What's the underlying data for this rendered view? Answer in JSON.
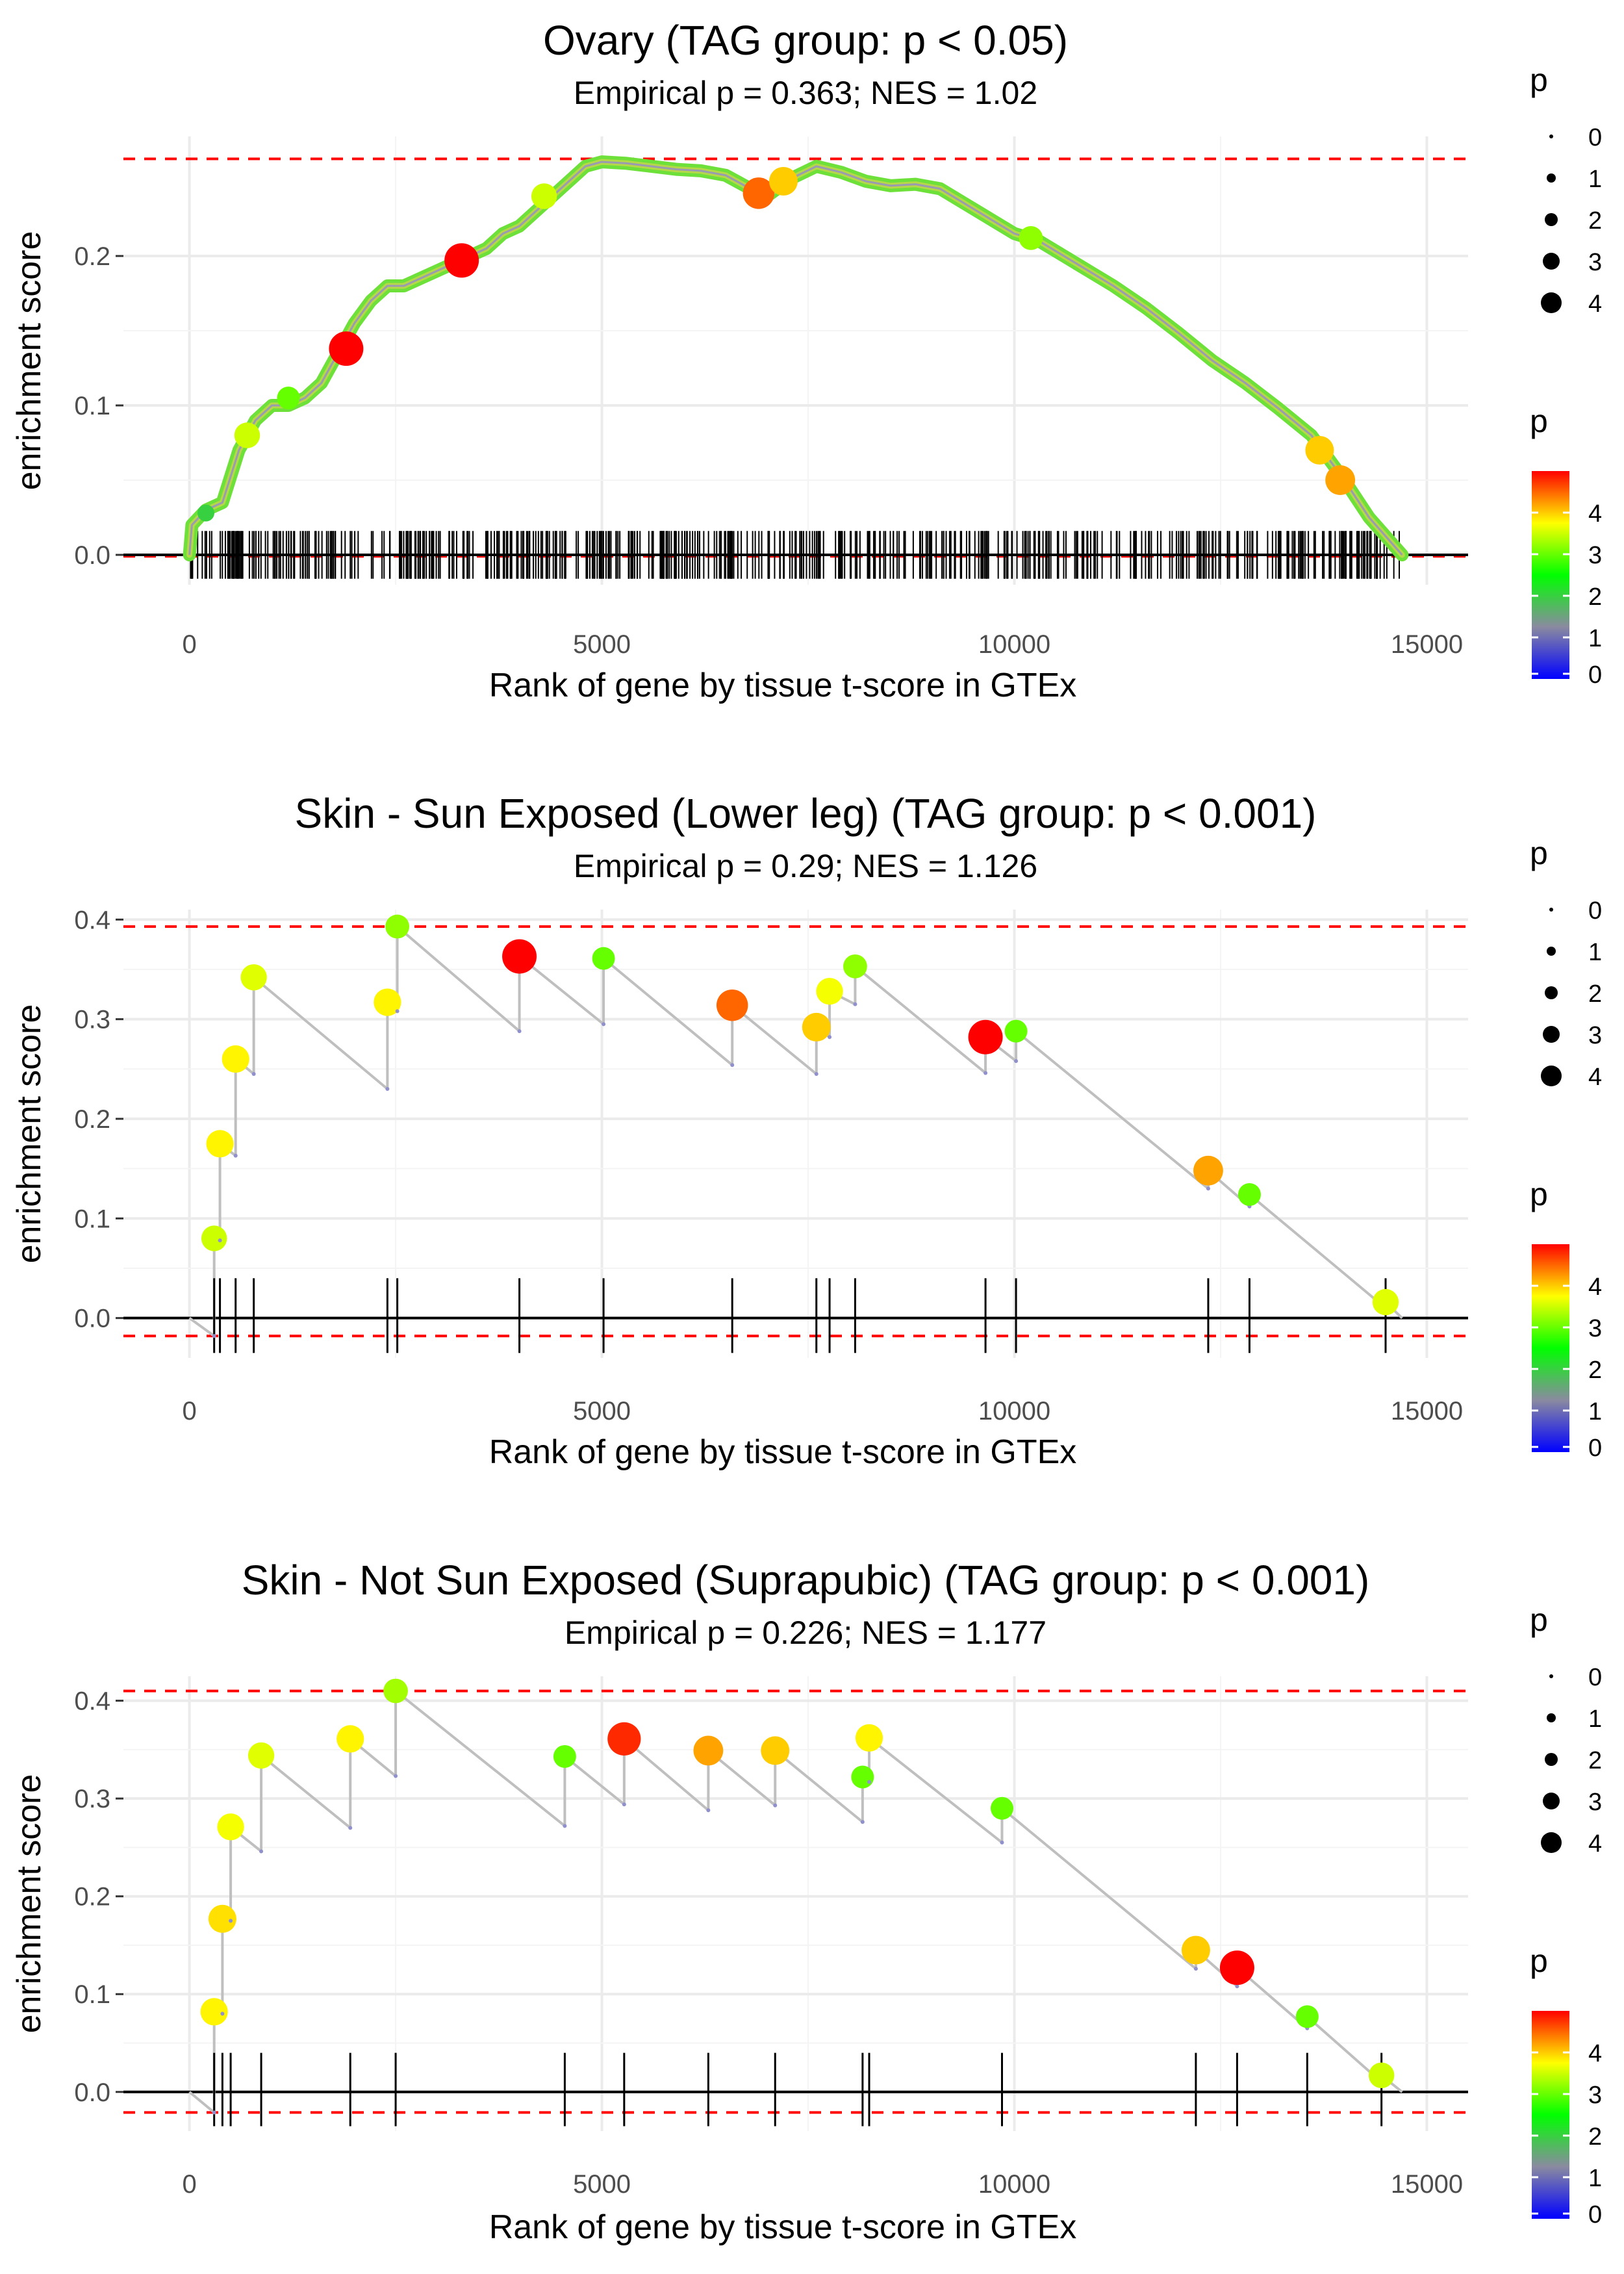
{
  "chart_data": [
    {
      "type": "line",
      "title": "Ovary (TAG group: p < 0.05)",
      "subtitle": "Empirical p = 0.363; NES = 1.02",
      "xlabel": "Rank of gene by tissue t-score in GTEx",
      "ylabel": "enrichment score",
      "xlim": [
        -800,
        15500
      ],
      "ylim": [
        -0.02,
        0.28
      ],
      "xticks": [
        0,
        5000,
        10000,
        15000
      ],
      "xtick_labels": [
        "0",
        "5000",
        "10000",
        "15000"
      ],
      "yticks": [
        0.0,
        0.1,
        0.2
      ],
      "ytick_labels": [
        "0.0",
        "0.1",
        "0.2"
      ],
      "es_max": 0.265,
      "es_min": -0.001,
      "hits_count": 520,
      "n_genes": 14700,
      "curve": [
        [
          0,
          0
        ],
        [
          30,
          0.02
        ],
        [
          200,
          0.03
        ],
        [
          400,
          0.035
        ],
        [
          600,
          0.07
        ],
        [
          800,
          0.09
        ],
        [
          1000,
          0.1
        ],
        [
          1200,
          0.1
        ],
        [
          1400,
          0.105
        ],
        [
          1600,
          0.115
        ],
        [
          1800,
          0.135
        ],
        [
          2000,
          0.155
        ],
        [
          2200,
          0.17
        ],
        [
          2400,
          0.18
        ],
        [
          2600,
          0.18
        ],
        [
          2800,
          0.185
        ],
        [
          3000,
          0.19
        ],
        [
          3200,
          0.195
        ],
        [
          3400,
          0.2
        ],
        [
          3600,
          0.205
        ],
        [
          3800,
          0.215
        ],
        [
          4000,
          0.22
        ],
        [
          4200,
          0.23
        ],
        [
          4400,
          0.24
        ],
        [
          4600,
          0.25
        ],
        [
          4800,
          0.26
        ],
        [
          5000,
          0.263
        ],
        [
          5300,
          0.262
        ],
        [
          5600,
          0.26
        ],
        [
          5900,
          0.258
        ],
        [
          6200,
          0.257
        ],
        [
          6500,
          0.254
        ],
        [
          6800,
          0.245
        ],
        [
          7000,
          0.24
        ],
        [
          7300,
          0.252
        ],
        [
          7600,
          0.26
        ],
        [
          7900,
          0.256
        ],
        [
          8200,
          0.25
        ],
        [
          8500,
          0.247
        ],
        [
          8800,
          0.248
        ],
        [
          9100,
          0.245
        ],
        [
          9400,
          0.235
        ],
        [
          9700,
          0.225
        ],
        [
          10000,
          0.215
        ],
        [
          10300,
          0.21
        ],
        [
          10600,
          0.2
        ],
        [
          10900,
          0.19
        ],
        [
          11200,
          0.18
        ],
        [
          11600,
          0.165
        ],
        [
          12000,
          0.148
        ],
        [
          12400,
          0.13
        ],
        [
          12800,
          0.115
        ],
        [
          13200,
          0.098
        ],
        [
          13600,
          0.08
        ],
        [
          14000,
          0.05
        ],
        [
          14300,
          0.025
        ],
        [
          14700,
          0
        ]
      ],
      "highlight_points": [
        {
          "x": 200,
          "y": 0.028,
          "p": 2.0
        },
        {
          "x": 700,
          "y": 0.08,
          "p": 3.5
        },
        {
          "x": 1200,
          "y": 0.105,
          "p": 3.0
        },
        {
          "x": 1900,
          "y": 0.138,
          "p": 5.0
        },
        {
          "x": 3300,
          "y": 0.197,
          "p": 5.0
        },
        {
          "x": 4300,
          "y": 0.24,
          "p": 3.5
        },
        {
          "x": 6900,
          "y": 0.242,
          "p": 4.5
        },
        {
          "x": 7200,
          "y": 0.25,
          "p": 4.0
        },
        {
          "x": 10200,
          "y": 0.212,
          "p": 3.2
        },
        {
          "x": 13700,
          "y": 0.07,
          "p": 4.0
        },
        {
          "x": 13950,
          "y": 0.05,
          "p": 4.2
        }
      ],
      "size_legend": {
        "title": "p",
        "values": [
          "0",
          "1",
          "2",
          "3",
          "4"
        ]
      },
      "color_legend": {
        "title": "p",
        "ticks": [
          "0",
          "1",
          "2",
          "3",
          "4"
        ],
        "colors": [
          "#0000ff",
          "#8a8aa0",
          "#00ff00",
          "#ffff00",
          "#ff0000"
        ]
      }
    },
    {
      "type": "line",
      "title": "Skin - Sun Exposed (Lower leg) (TAG group: p < 0.001)",
      "subtitle": "Empirical p = 0.29; NES = 1.126",
      "xlabel": "Rank of gene by tissue t-score in GTEx",
      "ylabel": "enrichment score",
      "xlim": [
        -800,
        15500
      ],
      "ylim": [
        -0.04,
        0.41
      ],
      "xticks": [
        0,
        5000,
        10000,
        15000
      ],
      "xtick_labels": [
        "0",
        "5000",
        "10000",
        "15000"
      ],
      "yticks": [
        0.0,
        0.1,
        0.2,
        0.3,
        0.4
      ],
      "ytick_labels": [
        "0.0",
        "0.1",
        "0.2",
        "0.3",
        "0.4"
      ],
      "es_max": 0.393,
      "es_min": -0.018,
      "n_genes": 14700,
      "hits": [
        {
          "x": 300,
          "before": -0.018,
          "after": 0.08,
          "p": 3.5
        },
        {
          "x": 370,
          "before": 0.078,
          "after": 0.175,
          "p": 3.8
        },
        {
          "x": 560,
          "before": 0.163,
          "after": 0.26,
          "p": 3.8
        },
        {
          "x": 780,
          "before": 0.245,
          "after": 0.342,
          "p": 3.6
        },
        {
          "x": 2400,
          "before": 0.23,
          "after": 0.317,
          "p": 3.8
        },
        {
          "x": 2520,
          "before": 0.308,
          "after": 0.393,
          "p": 3.2
        },
        {
          "x": 4000,
          "before": 0.288,
          "after": 0.363,
          "p": 5.0
        },
        {
          "x": 5020,
          "before": 0.295,
          "after": 0.361,
          "p": 3.0
        },
        {
          "x": 6580,
          "before": 0.254,
          "after": 0.314,
          "p": 4.5
        },
        {
          "x": 7600,
          "before": 0.245,
          "after": 0.292,
          "p": 4.0
        },
        {
          "x": 7760,
          "before": 0.282,
          "after": 0.328,
          "p": 3.7
        },
        {
          "x": 8070,
          "before": 0.315,
          "after": 0.353,
          "p": 3.2
        },
        {
          "x": 9650,
          "before": 0.246,
          "after": 0.282,
          "p": 5.0
        },
        {
          "x": 10020,
          "before": 0.258,
          "after": 0.288,
          "p": 3.0
        },
        {
          "x": 12350,
          "before": 0.13,
          "after": 0.148,
          "p": 4.2
        },
        {
          "x": 12850,
          "before": 0.112,
          "after": 0.124,
          "p": 3.0
        },
        {
          "x": 14500,
          "before": 0.01,
          "after": 0.016,
          "p": 3.6
        }
      ],
      "size_legend": {
        "title": "p",
        "values": [
          "0",
          "1",
          "2",
          "3",
          "4"
        ]
      },
      "color_legend": {
        "title": "p",
        "ticks": [
          "0",
          "1",
          "2",
          "3",
          "4"
        ],
        "colors": [
          "#0000ff",
          "#8a8aa0",
          "#00ff00",
          "#ffff00",
          "#ff0000"
        ]
      }
    },
    {
      "type": "line",
      "title": "Skin - Not Sun Exposed (Suprapubic) (TAG group: p < 0.001)",
      "subtitle": "Empirical p = 0.226; NES = 1.177",
      "xlabel": "Rank of gene by tissue t-score in GTEx",
      "ylabel": "enrichment score",
      "xlim": [
        -800,
        15500
      ],
      "ylim": [
        -0.04,
        0.425
      ],
      "xticks": [
        0,
        5000,
        10000,
        15000
      ],
      "xtick_labels": [
        "0",
        "5000",
        "10000",
        "15000"
      ],
      "yticks": [
        0.0,
        0.1,
        0.2,
        0.3,
        0.4
      ],
      "ytick_labels": [
        "0.0",
        "0.1",
        "0.2",
        "0.3",
        "0.4"
      ],
      "es_max": 0.41,
      "es_min": -0.021,
      "n_genes": 14700,
      "hits": [
        {
          "x": 300,
          "before": -0.021,
          "after": 0.082,
          "p": 3.8
        },
        {
          "x": 400,
          "before": 0.08,
          "after": 0.177,
          "p": 3.9
        },
        {
          "x": 500,
          "before": 0.175,
          "after": 0.271,
          "p": 3.7
        },
        {
          "x": 870,
          "before": 0.246,
          "after": 0.344,
          "p": 3.6
        },
        {
          "x": 1950,
          "before": 0.27,
          "after": 0.361,
          "p": 3.8
        },
        {
          "x": 2500,
          "before": 0.323,
          "after": 0.41,
          "p": 3.3
        },
        {
          "x": 4550,
          "before": 0.272,
          "after": 0.343,
          "p": 3.0
        },
        {
          "x": 5270,
          "before": 0.294,
          "after": 0.361,
          "p": 4.8
        },
        {
          "x": 6290,
          "before": 0.288,
          "after": 0.349,
          "p": 4.2
        },
        {
          "x": 7100,
          "before": 0.293,
          "after": 0.349,
          "p": 4.0
        },
        {
          "x": 8160,
          "before": 0.276,
          "after": 0.322,
          "p": 3.0
        },
        {
          "x": 8240,
          "before": 0.317,
          "after": 0.362,
          "p": 3.8
        },
        {
          "x": 9850,
          "before": 0.255,
          "after": 0.29,
          "p": 3.0
        },
        {
          "x": 12200,
          "before": 0.126,
          "after": 0.145,
          "p": 4.0
        },
        {
          "x": 12700,
          "before": 0.108,
          "after": 0.127,
          "p": 5.0
        },
        {
          "x": 13550,
          "before": 0.065,
          "after": 0.077,
          "p": 3.0
        },
        {
          "x": 14450,
          "before": 0.01,
          "after": 0.017,
          "p": 3.5
        }
      ],
      "size_legend": {
        "title": "p",
        "values": [
          "0",
          "1",
          "2",
          "3",
          "4"
        ]
      },
      "color_legend": {
        "title": "p",
        "ticks": [
          "0",
          "1",
          "2",
          "3",
          "4"
        ],
        "colors": [
          "#0000ff",
          "#8a8aa0",
          "#00ff00",
          "#ffff00",
          "#ff0000"
        ]
      }
    }
  ]
}
